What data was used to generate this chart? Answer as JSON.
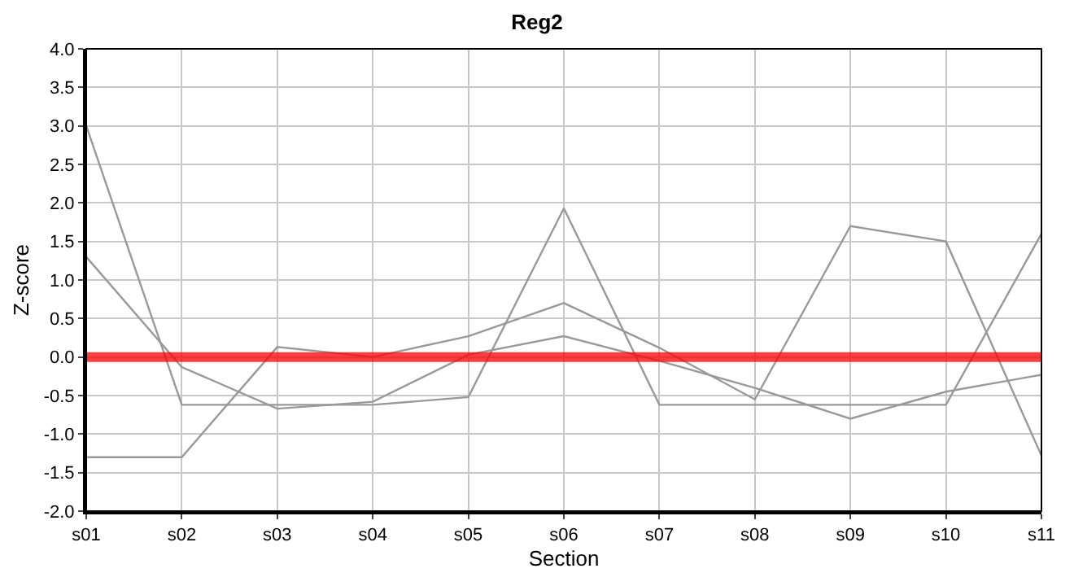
{
  "chart_data": {
    "type": "line",
    "title": "Reg2",
    "xlabel": "Section",
    "ylabel": "Z-score",
    "categories": [
      "s01",
      "s02",
      "s03",
      "s04",
      "s05",
      "s06",
      "s07",
      "s08",
      "s09",
      "s10",
      "s11"
    ],
    "series": [
      {
        "color": "#999999",
        "values": [
          3.0,
          -0.62,
          -0.62,
          -0.62,
          -0.52,
          1.93,
          -0.62,
          -0.62,
          -0.62,
          -0.62,
          1.6
        ]
      },
      {
        "color": "#999999",
        "values": [
          1.3,
          -0.13,
          -0.67,
          -0.58,
          0.03,
          0.27,
          -0.05,
          -0.4,
          -0.8,
          -0.45,
          -0.23
        ]
      },
      {
        "color": "#999999",
        "values": [
          -1.3,
          -1.3,
          0.13,
          0.0,
          0.27,
          0.7,
          0.12,
          -0.55,
          1.7,
          1.5,
          -1.28
        ]
      }
    ],
    "ylim": [
      -2.0,
      4.0
    ],
    "yticks": [
      {
        "value": -2,
        "label": "-2.0"
      },
      {
        "value": -1.5,
        "label": "-1.5"
      },
      {
        "value": -1,
        "label": "-1.0"
      },
      {
        "value": -0.5,
        "label": "-0.5"
      },
      {
        "value": 0,
        "label": "0.0"
      },
      {
        "value": 0.5,
        "label": "0.5"
      },
      {
        "value": 1,
        "label": "1.0"
      },
      {
        "value": 1.5,
        "label": "1.5"
      },
      {
        "value": 2,
        "label": "2.0"
      },
      {
        "value": 2.5,
        "label": "2.5"
      },
      {
        "value": 3,
        "label": "3.0"
      },
      {
        "value": 3.5,
        "label": "3.5"
      },
      {
        "value": 4,
        "label": "4.0"
      }
    ],
    "ref_lines": [
      {
        "axis": "y",
        "value": 0.0,
        "color": "#ff0000"
      }
    ],
    "grid": true,
    "marker": "none",
    "line_style": "solid"
  }
}
